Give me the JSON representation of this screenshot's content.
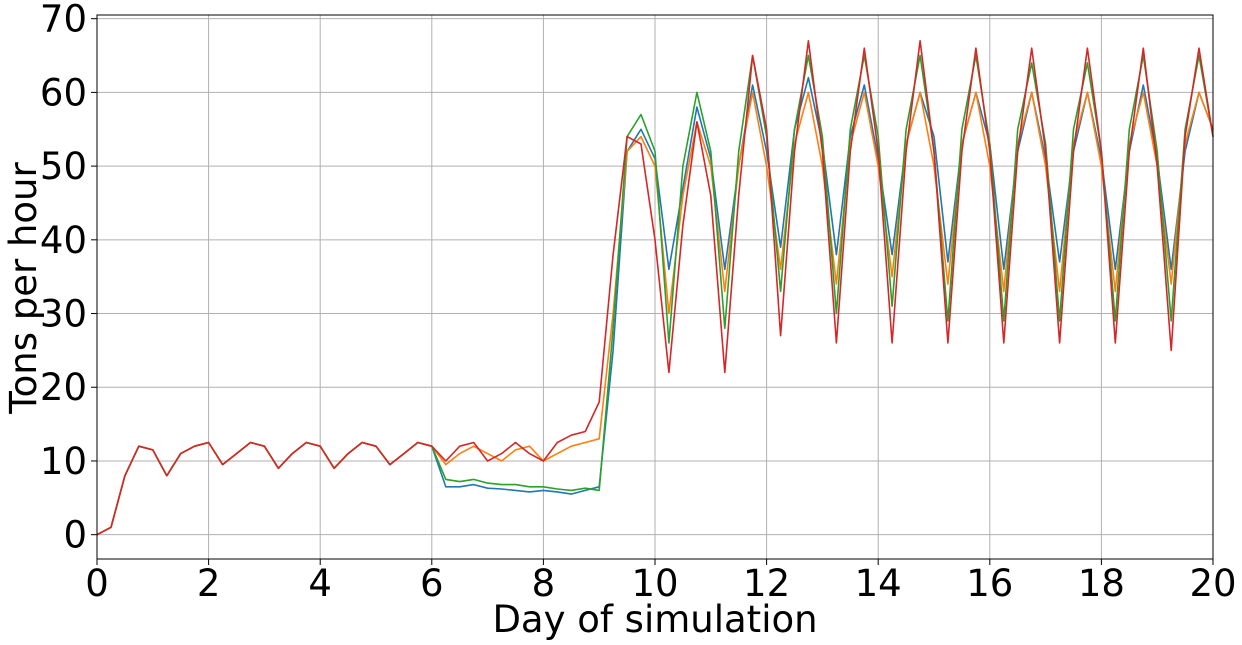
{
  "chart_data": {
    "type": "line",
    "xlabel": "Day of simulation",
    "ylabel": "Tons per hour",
    "xlim": [
      0,
      20
    ],
    "ylim": [
      -3.3,
      70.5
    ],
    "xticks": [
      0,
      2,
      4,
      6,
      8,
      10,
      12,
      14,
      16,
      18,
      20
    ],
    "yticks": [
      0,
      10,
      20,
      30,
      40,
      50,
      60,
      70
    ],
    "grid": true,
    "legend": "none",
    "x": [
      0,
      0.25,
      0.5,
      0.75,
      1,
      1.25,
      1.5,
      1.75,
      2,
      2.25,
      2.5,
      2.75,
      3,
      3.25,
      3.5,
      3.75,
      4,
      4.25,
      4.5,
      4.75,
      5,
      5.25,
      5.5,
      5.75,
      6,
      6.25,
      6.5,
      6.75,
      7,
      7.25,
      7.5,
      7.75,
      8,
      8.25,
      8.5,
      8.75,
      9,
      9.25,
      9.5,
      9.75,
      10,
      10.25,
      10.5,
      10.75,
      11,
      11.25,
      11.5,
      11.75,
      12,
      12.25,
      12.5,
      12.75,
      13,
      13.25,
      13.5,
      13.75,
      14,
      14.25,
      14.5,
      14.75,
      15,
      15.25,
      15.5,
      15.75,
      16,
      16.25,
      16.5,
      16.75,
      17,
      17.25,
      17.5,
      17.75,
      18,
      18.25,
      18.5,
      18.75,
      19,
      19.25,
      19.5,
      19.75,
      20
    ],
    "series": [
      {
        "color": "#1f77b4",
        "values": [
          0,
          1,
          8,
          12,
          11.5,
          8,
          11,
          12,
          12.5,
          9.5,
          11,
          12.5,
          12,
          9,
          11,
          12.5,
          12,
          9,
          11,
          12.5,
          12,
          9.5,
          11,
          12.5,
          12,
          6.5,
          6.5,
          6.8,
          6.3,
          6.2,
          6,
          5.8,
          6,
          5.8,
          5.5,
          6,
          6.5,
          25,
          52,
          55,
          51,
          36,
          47,
          58,
          51,
          36,
          50,
          61,
          52,
          39,
          55,
          62,
          53,
          38,
          54,
          61,
          51,
          38,
          53,
          60,
          54,
          37,
          53,
          60,
          53,
          36,
          52,
          60,
          51,
          37,
          52,
          60,
          51,
          36,
          52,
          61,
          51,
          36,
          52,
          60,
          55
        ]
      },
      {
        "color": "#ff7f0e",
        "values": [
          0,
          1,
          8,
          12,
          11.5,
          8,
          11,
          12,
          12.5,
          9.5,
          11,
          12.5,
          12,
          9,
          11,
          12.5,
          12,
          9,
          11,
          12.5,
          12,
          9.5,
          11,
          12.5,
          12,
          9.5,
          11,
          12,
          11,
          10,
          11.5,
          12,
          10,
          11,
          12,
          12.5,
          13,
          30,
          52,
          54,
          50,
          30,
          46,
          56,
          50,
          33,
          50,
          60,
          50,
          36,
          53,
          60,
          50,
          34,
          53,
          60,
          50,
          35,
          53,
          60,
          50,
          34,
          53,
          60,
          50,
          33,
          53,
          60,
          50,
          33,
          53,
          60,
          50,
          33,
          53,
          60,
          50,
          34,
          53,
          60,
          55
        ]
      },
      {
        "color": "#2ca02c",
        "values": [
          0,
          1,
          8,
          12,
          11.5,
          8,
          11,
          12,
          12.5,
          9.5,
          11,
          12.5,
          12,
          9,
          11,
          12.5,
          12,
          9,
          11,
          12.5,
          12,
          9.5,
          11,
          12.5,
          12,
          7.5,
          7.2,
          7.5,
          7,
          6.8,
          6.8,
          6.5,
          6.5,
          6.2,
          6,
          6.3,
          6,
          28,
          54,
          57,
          52,
          26,
          50,
          60,
          52,
          28,
          52,
          65,
          54,
          33,
          55,
          65,
          54,
          30,
          55,
          65,
          54,
          31,
          55,
          65,
          52,
          29,
          55,
          65,
          53,
          29,
          55,
          64,
          53,
          29,
          55,
          64,
          52,
          29,
          55,
          65,
          52,
          29,
          55,
          65,
          54
        ]
      },
      {
        "color": "#d62728",
        "values": [
          0,
          1,
          8,
          12,
          11.5,
          8,
          11,
          12,
          12.5,
          9.5,
          11,
          12.5,
          12,
          9,
          11,
          12.5,
          12,
          9,
          11,
          12.5,
          12,
          9.5,
          11,
          12.5,
          12,
          10,
          12,
          12.5,
          10,
          11,
          12.5,
          11,
          10,
          12.5,
          13.5,
          14,
          18,
          38,
          54,
          53,
          40,
          22,
          42,
          56,
          46,
          22,
          46,
          65,
          55,
          27,
          52,
          67,
          52,
          26,
          52,
          66,
          52,
          26,
          52,
          67,
          52,
          26,
          52,
          66,
          52,
          26,
          52,
          66,
          52,
          26,
          52,
          66,
          52,
          26,
          52,
          66,
          50,
          25,
          54,
          66,
          54
        ]
      }
    ]
  }
}
